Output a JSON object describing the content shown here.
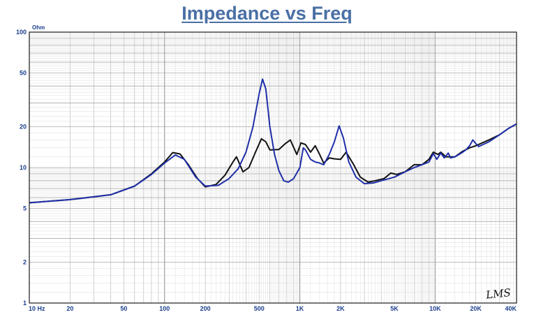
{
  "chart_data": {
    "type": "line",
    "title": "Impedance vs Freq",
    "ylabel": "Ohm",
    "x_scale": "log",
    "y_scale": "log",
    "xlim": [
      10,
      40000
    ],
    "ylim": [
      1,
      100
    ],
    "grid": true,
    "x_tick_labels": [
      {
        "value": 10,
        "label": "10 Hz"
      },
      {
        "value": 20,
        "label": "20"
      },
      {
        "value": 50,
        "label": "50"
      },
      {
        "value": 100,
        "label": "100"
      },
      {
        "value": 200,
        "label": "200"
      },
      {
        "value": 500,
        "label": "500"
      },
      {
        "value": 1000,
        "label": "1K"
      },
      {
        "value": 2000,
        "label": "2K"
      },
      {
        "value": 5000,
        "label": "5K"
      },
      {
        "value": 10000,
        "label": "10K"
      },
      {
        "value": 20000,
        "label": "20K"
      },
      {
        "value": 40000,
        "label": "40K"
      }
    ],
    "y_tick_labels": [
      {
        "value": 1,
        "label": "1"
      },
      {
        "value": 2,
        "label": "2"
      },
      {
        "value": 5,
        "label": "5"
      },
      {
        "value": 10,
        "label": "10"
      },
      {
        "value": 20,
        "label": "20"
      },
      {
        "value": 50,
        "label": "50"
      },
      {
        "value": 100,
        "label": "100"
      }
    ],
    "series": [
      {
        "color": "#111111",
        "points": [
          [
            10,
            5.5
          ],
          [
            20,
            5.8
          ],
          [
            40,
            6.3
          ],
          [
            60,
            7.3
          ],
          [
            80,
            9.0
          ],
          [
            100,
            11.0
          ],
          [
            115,
            12.9
          ],
          [
            130,
            12.6
          ],
          [
            150,
            10.5
          ],
          [
            175,
            8.3
          ],
          [
            200,
            7.2
          ],
          [
            240,
            7.5
          ],
          [
            280,
            8.8
          ],
          [
            320,
            11.0
          ],
          [
            340,
            12.0
          ],
          [
            380,
            9.3
          ],
          [
            420,
            10.0
          ],
          [
            470,
            13.0
          ],
          [
            520,
            16.3
          ],
          [
            560,
            15.5
          ],
          [
            600,
            13.5
          ],
          [
            700,
            13.6
          ],
          [
            780,
            15.0
          ],
          [
            850,
            16.0
          ],
          [
            950,
            12.5
          ],
          [
            1020,
            15.2
          ],
          [
            1100,
            14.8
          ],
          [
            1200,
            13.0
          ],
          [
            1300,
            14.5
          ],
          [
            1400,
            12.5
          ],
          [
            1500,
            10.8
          ],
          [
            1650,
            11.8
          ],
          [
            1800,
            11.6
          ],
          [
            2000,
            11.5
          ],
          [
            2200,
            13.0
          ],
          [
            2500,
            10.5
          ],
          [
            2800,
            8.5
          ],
          [
            3200,
            7.8
          ],
          [
            3600,
            8.0
          ],
          [
            4200,
            8.3
          ],
          [
            4700,
            9.1
          ],
          [
            5200,
            8.9
          ],
          [
            6000,
            9.3
          ],
          [
            7000,
            10.5
          ],
          [
            8000,
            10.5
          ],
          [
            9000,
            11.5
          ],
          [
            9700,
            13.0
          ],
          [
            10500,
            12.5
          ],
          [
            11000,
            13.0
          ],
          [
            12000,
            12.0
          ],
          [
            13000,
            12.0
          ],
          [
            14000,
            12.0
          ],
          [
            16000,
            13.2
          ],
          [
            18000,
            14.0
          ],
          [
            20000,
            14.5
          ],
          [
            25000,
            16.0
          ],
          [
            30000,
            17.5
          ],
          [
            35000,
            19.5
          ],
          [
            40000,
            21.0
          ]
        ]
      },
      {
        "color": "#1f2fa8",
        "points": [
          [
            10,
            5.5
          ],
          [
            20,
            5.8
          ],
          [
            40,
            6.3
          ],
          [
            60,
            7.3
          ],
          [
            80,
            8.9
          ],
          [
            100,
            10.8
          ],
          [
            120,
            12.4
          ],
          [
            140,
            11.5
          ],
          [
            170,
            8.5
          ],
          [
            200,
            7.3
          ],
          [
            250,
            7.4
          ],
          [
            300,
            8.3
          ],
          [
            350,
            9.8
          ],
          [
            400,
            13.0
          ],
          [
            450,
            20.0
          ],
          [
            500,
            35.0
          ],
          [
            530,
            45.0
          ],
          [
            560,
            38.0
          ],
          [
            600,
            20.0
          ],
          [
            650,
            12.5
          ],
          [
            700,
            9.5
          ],
          [
            760,
            8.0
          ],
          [
            820,
            7.8
          ],
          [
            900,
            8.3
          ],
          [
            1000,
            10.0
          ],
          [
            1060,
            14.0
          ],
          [
            1100,
            13.5
          ],
          [
            1200,
            11.5
          ],
          [
            1300,
            11.0
          ],
          [
            1400,
            10.8
          ],
          [
            1500,
            10.5
          ],
          [
            1650,
            12.5
          ],
          [
            1800,
            15.5
          ],
          [
            1950,
            20.3
          ],
          [
            2100,
            16.5
          ],
          [
            2300,
            11.0
          ],
          [
            2600,
            8.5
          ],
          [
            3000,
            7.6
          ],
          [
            3500,
            7.7
          ],
          [
            4000,
            8.0
          ],
          [
            5000,
            8.5
          ],
          [
            6000,
            9.3
          ],
          [
            7000,
            10.0
          ],
          [
            8000,
            10.5
          ],
          [
            9000,
            11.0
          ],
          [
            9700,
            12.7
          ],
          [
            10300,
            11.5
          ],
          [
            11000,
            12.8
          ],
          [
            11700,
            11.8
          ],
          [
            12500,
            12.8
          ],
          [
            13000,
            11.8
          ],
          [
            14000,
            12.0
          ],
          [
            15000,
            12.5
          ],
          [
            16000,
            13.0
          ],
          [
            17000,
            13.6
          ],
          [
            18000,
            14.5
          ],
          [
            19000,
            16.0
          ],
          [
            20000,
            15.0
          ],
          [
            21000,
            14.3
          ],
          [
            25000,
            15.5
          ],
          [
            30000,
            17.5
          ],
          [
            35000,
            19.5
          ],
          [
            40000,
            21.0
          ]
        ]
      }
    ]
  },
  "logo_text": "LMS"
}
